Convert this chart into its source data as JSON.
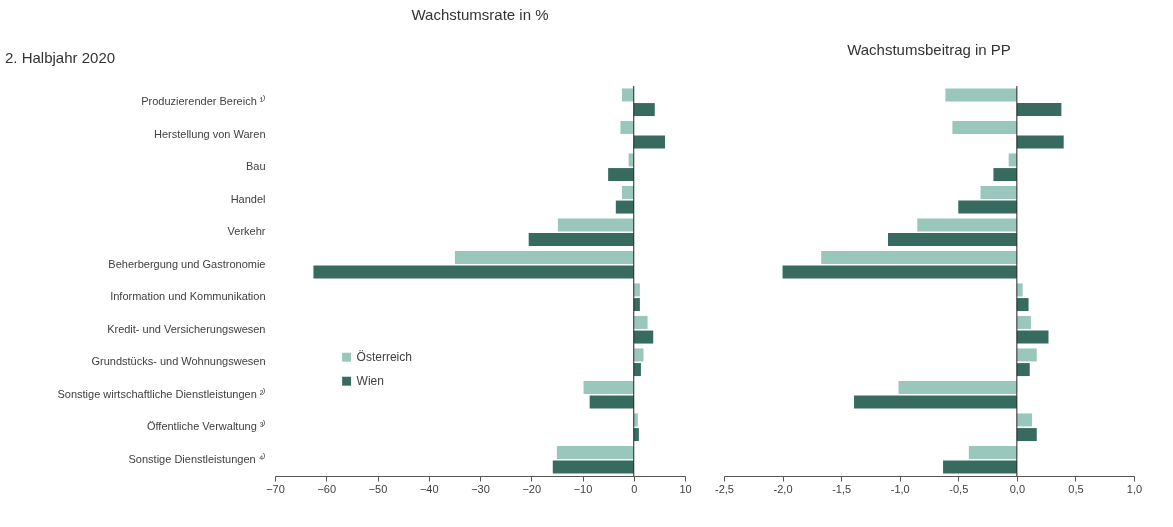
{
  "chart_data": [
    {
      "type": "bar",
      "orientation": "horizontal",
      "title": "Wachstumsrate in %",
      "subtitle": "2. Halbjahr 2020",
      "categories": [
        "Produzierender Bereich ¹⁾",
        "Herstellung von Waren",
        "Bau",
        "Handel",
        "Verkehr",
        "Beherbergung und Gastronomie",
        "Information und Kommunikation",
        "Kredit- und Versicherungswesen",
        "Grundstücks- und Wohnungswesen",
        "Sonstige wirtschaftliche Dienstleistungen ²⁾",
        "Öffentliche Verwaltung ³⁾",
        "Sonstige Dienstleistungen ⁴⁾"
      ],
      "series": [
        {
          "name": "Österreich",
          "color": "#9ac7bc",
          "values": [
            -2.3,
            -2.6,
            -1.0,
            -2.3,
            -14.8,
            -34.9,
            1.2,
            2.7,
            1.9,
            -9.8,
            0.8,
            -15.0
          ]
        },
        {
          "name": "Wien",
          "color": "#386b60",
          "values": [
            4.1,
            6.1,
            -5.0,
            -3.5,
            -20.5,
            -62.5,
            1.2,
            3.8,
            1.4,
            -8.6,
            1.0,
            -15.8
          ]
        }
      ],
      "xlim": [
        -70,
        10
      ],
      "xticks": [
        -70,
        -60,
        -50,
        -40,
        -30,
        -20,
        -10,
        0,
        10
      ],
      "legend": "left",
      "grid": false,
      "ref_lines": [
        {
          "axis": "x",
          "value": 0,
          "color": "#222222"
        }
      ]
    },
    {
      "type": "bar",
      "orientation": "horizontal",
      "title": "Wachstumsbeitrag in PP",
      "categories": [
        "Produzierender Bereich ¹⁾",
        "Herstellung von Waren",
        "Bau",
        "Handel",
        "Verkehr",
        "Beherbergung und Gastronomie",
        "Information und Kommunikation",
        "Kredit- und Versicherungswesen",
        "Grundstücks- und Wohnungswesen",
        "Sonstige wirtschaftliche Dienstleistungen ²⁾",
        "Öffentliche Verwaltung ³⁾",
        "Sonstige Dienstleistungen ⁴⁾"
      ],
      "ref_lines": [
        {
          "axis": "x",
          "value": 0,
          "color": "#222222"
        }
      ],
      "series": [
        {
          "color": "#9ac7bc",
          "values": [
            -0.61,
            -0.55,
            -0.07,
            -0.31,
            -0.85,
            -1.67,
            0.05,
            0.12,
            0.17,
            -1.01,
            0.13,
            -0.41
          ]
        },
        {
          "color": "#386b60",
          "values": [
            0.38,
            0.4,
            -0.2,
            -0.5,
            -1.1,
            -2.0,
            0.1,
            0.27,
            0.11,
            -1.39,
            0.17,
            -0.63
          ]
        }
      ],
      "xlim": [
        -2.5,
        1.0
      ],
      "xticks": [
        {
          "value": -2.5,
          "label": "-2,5"
        },
        {
          "value": -2.0,
          "label": "-2,0"
        },
        {
          "value": -1.5,
          "label": "-1,5"
        },
        {
          "value": -1.0,
          "label": "-1,0"
        },
        {
          "value": -0.5,
          "label": "-0,5"
        },
        {
          "value": 0,
          "label": "0,0"
        },
        {
          "value": 0.5,
          "label": "0,5"
        },
        {
          "value": 1.0,
          "label": "1,0"
        }
      ],
      "tick_labels": "x",
      "legend": false,
      "grid": false
    }
  ]
}
